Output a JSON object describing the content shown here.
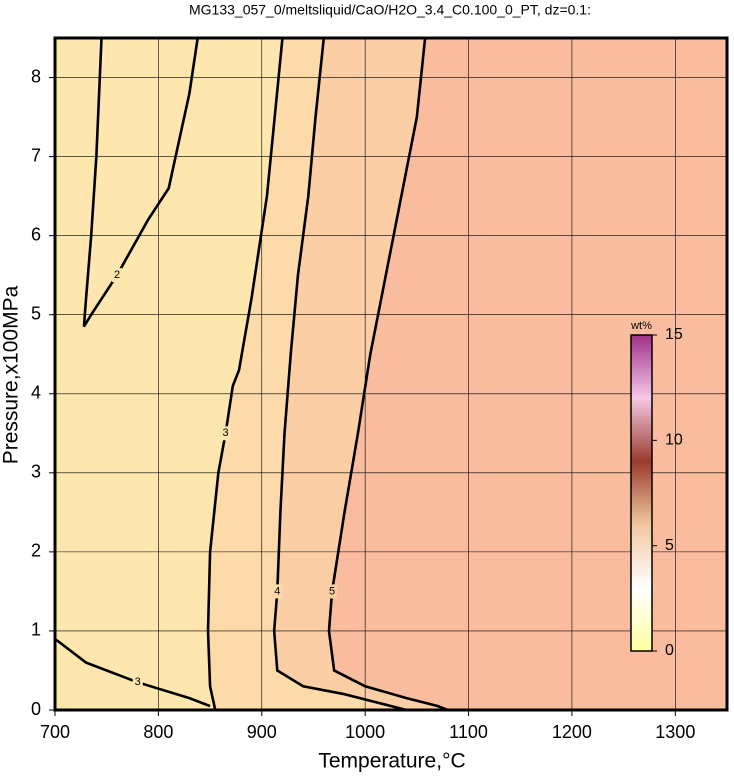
{
  "chart_data": {
    "type": "contour",
    "title": "MG133_057_0/meltsliquid/CaO/H2O_3.4_C0.100_0_PT, dz=0.1:",
    "xlabel": "Temperature,°C",
    "ylabel": "Pressure,x100MPa",
    "xlim": [
      700,
      1350
    ],
    "ylim": [
      0,
      8.5
    ],
    "xticks": [
      700,
      800,
      900,
      1000,
      1100,
      1200,
      1300
    ],
    "yticks": [
      0,
      1,
      2,
      3,
      4,
      5,
      6,
      7,
      8
    ],
    "grid": true,
    "background": "#f9bc9f",
    "contours": [
      {
        "level": 5,
        "fill": "#fbcea6",
        "x": [
          1058,
          1050,
          1035,
          1020,
          1005,
          993,
          980,
          968,
          965,
          970,
          1000,
          1040,
          1070,
          1080
        ],
        "y": [
          8.5,
          7.5,
          6.5,
          5.5,
          4.5,
          3.5,
          2.5,
          1.5,
          1.0,
          0.5,
          0.3,
          0.15,
          0.05,
          0
        ]
      },
      {
        "level": 4,
        "fill": "#fcdaa9",
        "x": [
          960,
          952,
          945,
          935,
          928,
          922,
          918,
          915,
          912,
          915,
          940,
          980,
          1010,
          1040
        ],
        "y": [
          8.5,
          7.5,
          6.5,
          5.5,
          4.5,
          3.5,
          2.5,
          1.5,
          1.0,
          0.5,
          0.3,
          0.2,
          0.1,
          0
        ]
      },
      {
        "level": 3,
        "fill": "#fde7ae",
        "x": [
          920,
          905,
          890,
          878,
          872,
          865,
          858,
          850,
          848,
          850,
          855
        ],
        "y": [
          8.5,
          6.5,
          5.2,
          4.3,
          4.1,
          3.5,
          3.0,
          2.0,
          1.0,
          0.3,
          0
        ]
      },
      {
        "level": 2,
        "x": [
          745,
          740,
          735,
          730,
          728,
          735,
          760,
          790,
          810,
          820,
          830,
          838
        ],
        "y": [
          8.5,
          7.0,
          6.0,
          5.2,
          4.85,
          5.0,
          5.5,
          6.2,
          6.6,
          7.2,
          7.8,
          8.5
        ]
      },
      {
        "level": 3,
        "x": [
          700,
          730,
          780,
          830,
          850
        ],
        "y": [
          0.9,
          0.6,
          0.35,
          0.15,
          0.05
        ]
      }
    ],
    "colorbar": {
      "label": "wt%",
      "lim": [
        0,
        15
      ],
      "ticks": [
        0,
        5,
        10,
        15
      ],
      "colors": [
        "#ffffa0",
        "#ffffff",
        "#f2c7a0",
        "#9a3b2a",
        "#f6c8e8",
        "#a0308a"
      ]
    }
  }
}
